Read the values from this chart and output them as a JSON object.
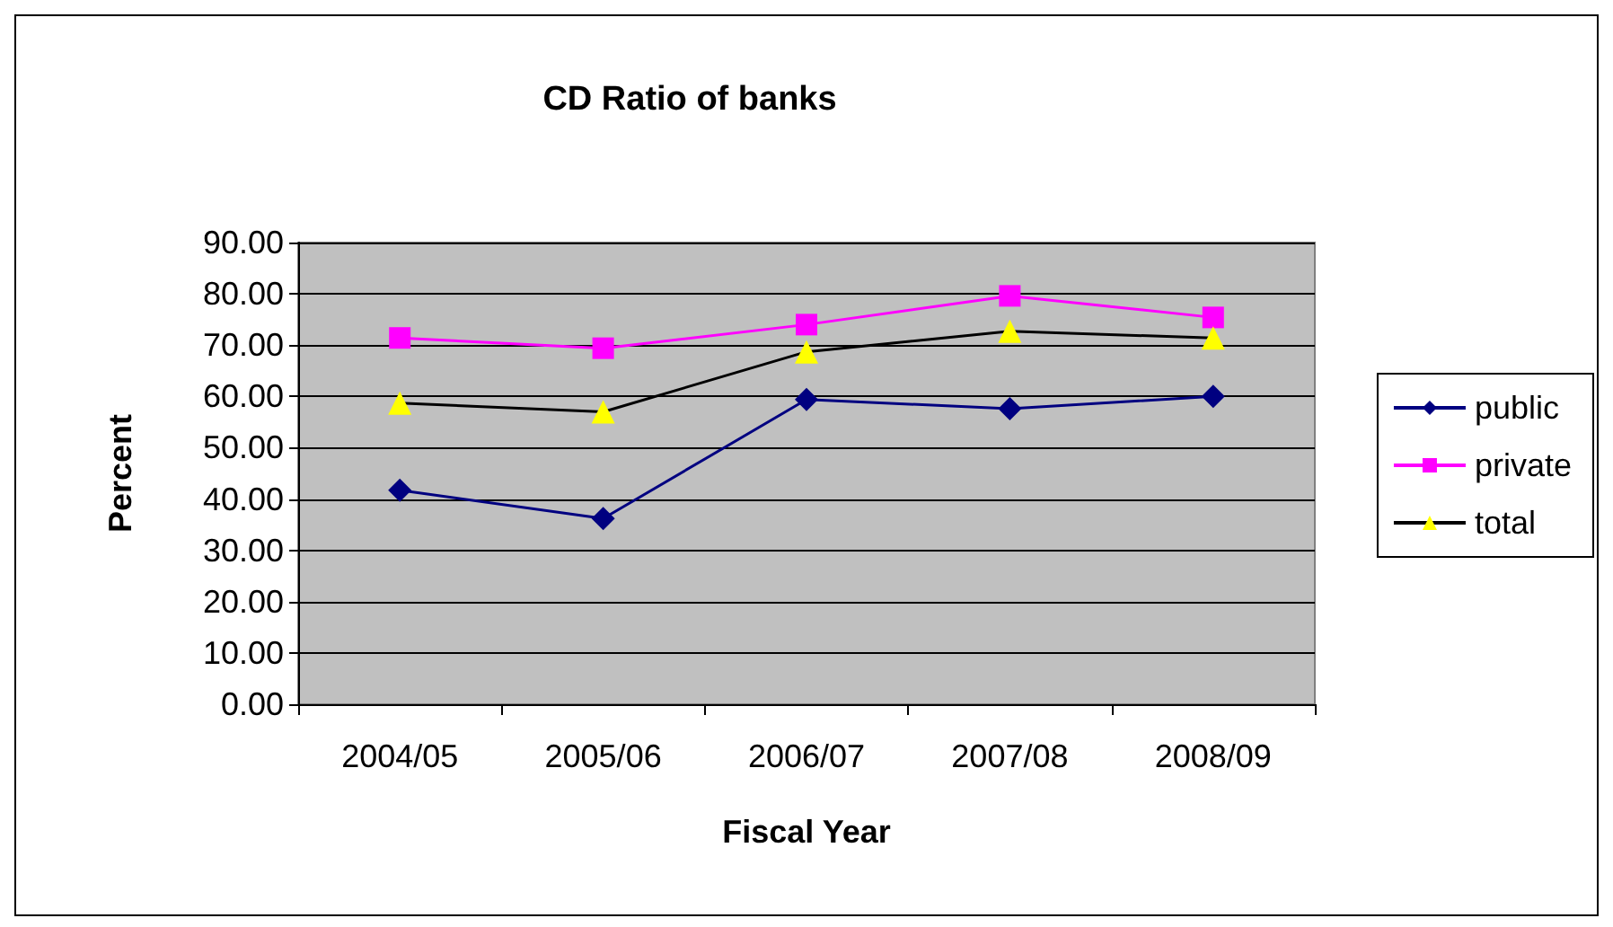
{
  "chart_data": {
    "type": "line",
    "title": "CD Ratio of banks",
    "xlabel": "Fiscal Year",
    "ylabel": "Percent",
    "categories": [
      "2004/05",
      "2005/06",
      "2006/07",
      "2007/08",
      "2008/09"
    ],
    "series": [
      {
        "name": "public",
        "color": "#000080",
        "marker": "diamond",
        "values": [
          41.7,
          36.2,
          59.4,
          57.6,
          60.0
        ]
      },
      {
        "name": "private",
        "color": "#ff00ff",
        "marker": "square",
        "values": [
          71.4,
          69.4,
          74.0,
          79.6,
          75.4
        ]
      },
      {
        "name": "total",
        "color": "#000000",
        "colors": [
          "#ffff00",
          "#ffff00",
          "#ffff00",
          "#ffff00",
          "#ffff00"
        ],
        "marker": "triangle",
        "values": [
          58.7,
          57.0,
          68.7,
          72.7,
          71.4
        ]
      }
    ],
    "ylim": [
      0,
      90
    ],
    "yticks": [
      {
        "value": 0,
        "label": "0.00"
      },
      {
        "value": 10,
        "label": "10.00"
      },
      {
        "value": 20,
        "label": "20.00"
      },
      {
        "value": 30,
        "label": "30.00"
      },
      {
        "value": 40,
        "label": "40.00"
      },
      {
        "value": 50,
        "label": "50.00"
      },
      {
        "value": 60,
        "label": "60.00"
      },
      {
        "value": 70,
        "label": "70.00"
      },
      {
        "value": 80,
        "label": "80.00"
      },
      {
        "value": 90,
        "label": "90.00"
      }
    ],
    "grid": "y",
    "legend": "right"
  }
}
